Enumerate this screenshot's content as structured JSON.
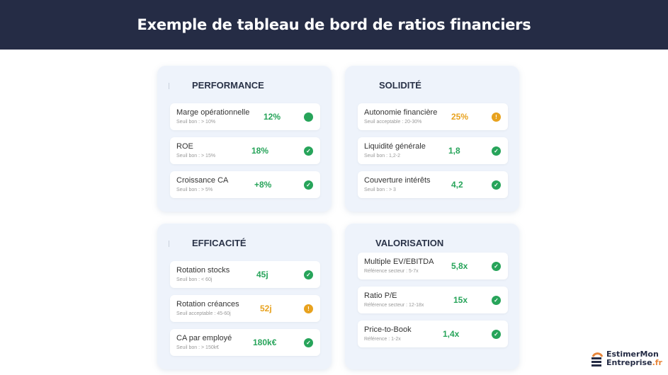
{
  "header": {
    "title": "Exemple de tableau de bord de ratios financiers"
  },
  "colors": {
    "good": "#27a45a",
    "warning": "#e8a21e",
    "header_bg": "#252c45"
  },
  "cards": [
    {
      "title": "PERFORMANCE",
      "rows": [
        {
          "label": "Marge opérationnelle",
          "threshold": "Seuil bon : > 10%",
          "value": "12%",
          "status": "good",
          "icon": "filled-circle-icon"
        },
        {
          "label": "ROE",
          "threshold": "Seuil bon : > 15%",
          "value": "18%",
          "status": "good",
          "icon": "check-circle-icon"
        },
        {
          "label": "Croissance CA",
          "threshold": "Seuil bon : > 5%",
          "value": "+8%",
          "status": "good",
          "icon": "check-circle-icon"
        }
      ]
    },
    {
      "title": "SOLIDITÉ",
      "rows": [
        {
          "label": "Autonomie financière",
          "threshold": "Seuil acceptable : 20-30%",
          "value": "25%",
          "status": "warning",
          "icon": "exclamation-circle-icon"
        },
        {
          "label": "Liquidité générale",
          "threshold": "Seuil bon : 1,2-2",
          "value": "1,8",
          "status": "good",
          "icon": "check-circle-icon"
        },
        {
          "label": "Couverture intérêts",
          "threshold": "Seuil bon : > 3",
          "value": "4,2",
          "status": "good",
          "icon": "check-circle-icon"
        }
      ]
    },
    {
      "title": "EFFICACITÉ",
      "rows": [
        {
          "label": "Rotation stocks",
          "threshold": "Seuil bon : < 60j",
          "value": "45j",
          "status": "good",
          "icon": "check-circle-icon"
        },
        {
          "label": "Rotation créances",
          "threshold": "Seuil acceptable : 45-60j",
          "value": "52j",
          "status": "warning",
          "icon": "exclamation-circle-icon"
        },
        {
          "label": "CA par employé",
          "threshold": "Seuil bon : > 150k€",
          "value": "180k€",
          "status": "good",
          "icon": "check-circle-icon"
        }
      ]
    },
    {
      "title": "VALORISATION",
      "rows": [
        {
          "label": "Multiple EV/EBITDA",
          "threshold": "Référence secteur : 5-7x",
          "value": "5,8x",
          "status": "good",
          "icon": "check-circle-icon"
        },
        {
          "label": "Ratio P/E",
          "threshold": "Référence secteur : 12-18x",
          "value": "15x",
          "status": "good",
          "icon": "check-circle-icon"
        },
        {
          "label": "Price-to-Book",
          "threshold": "Référence : 1-2x",
          "value": "1,4x",
          "status": "good",
          "icon": "check-circle-icon"
        }
      ]
    }
  ],
  "logo": {
    "line1": "EstimerMon",
    "line2": "Entreprise",
    "suffix": ".fr"
  }
}
